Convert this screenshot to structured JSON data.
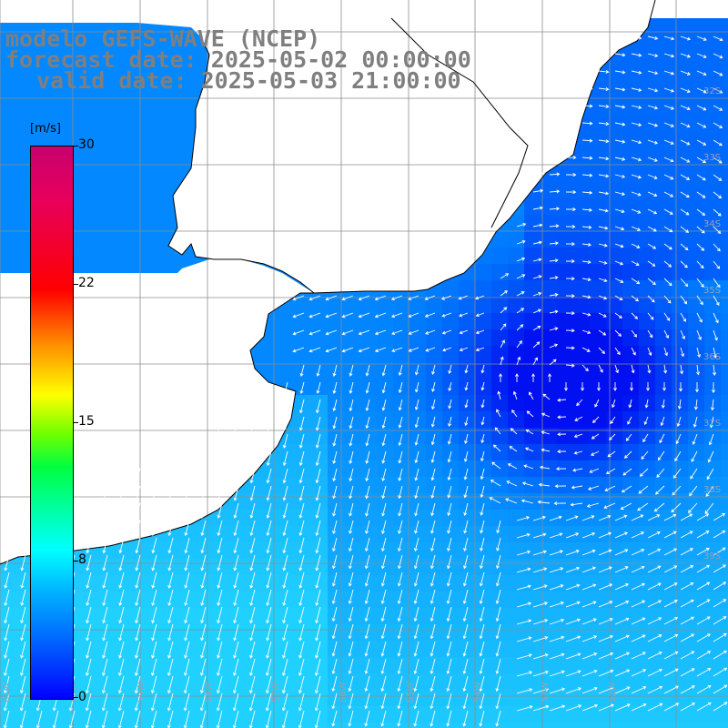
{
  "title": {
    "model": "modelo GEFS-WAVE (NCEP)",
    "forecast": "forecast date: 2025-05-02 00:00:00",
    "valid": "valid date: 2025-05-03 21:00:00"
  },
  "colorbar": {
    "unit": "[m/s]",
    "ticks": [
      "30",
      "22",
      "15",
      "8",
      "0"
    ],
    "range": [
      0,
      30
    ],
    "colors": [
      "#0000ff",
      "#00b8ff",
      "#00ffff",
      "#00ff40",
      "#ffff00",
      "#ff9000",
      "#ff0000",
      "#c8006e"
    ]
  },
  "map": {
    "variable": "wind speed and direction",
    "field_colors": {
      "low": "#0010f0",
      "mid": "#0080ff",
      "high": "#20d0ff"
    },
    "lat_labels": [
      "32S",
      "33S",
      "34S",
      "35S",
      "36S",
      "37S",
      "38S",
      "39S"
    ],
    "lon_labels": [
      "61W",
      "60W",
      "59W",
      "58W",
      "57W",
      "56W",
      "55W",
      "54W",
      "53W",
      "52W"
    ],
    "grid": true,
    "land_color": "#ffffff",
    "coast_color": "#000000"
  }
}
